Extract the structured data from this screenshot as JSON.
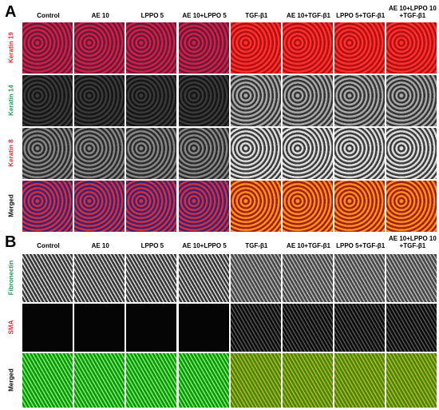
{
  "panel_a": {
    "label": "A",
    "columns": [
      [
        "Control"
      ],
      [
        "AE 10"
      ],
      [
        "LPPO 5"
      ],
      [
        "AE 10+LPPO 5"
      ],
      [
        "TGF-β1"
      ],
      [
        "AE 10+TGF-β1"
      ],
      [
        "LPPO 5+TGF-β1"
      ],
      [
        "AE 10+LPPO 10",
        "+TGF-β1"
      ]
    ],
    "rows": [
      {
        "label": "Keratin 19",
        "color": "#e0303a"
      },
      {
        "label": "Keratin 14",
        "color": "#2a9a5a"
      },
      {
        "label": "Keratin 8",
        "color": "#e0303a"
      },
      {
        "label": "Merged",
        "color": "#111111"
      }
    ]
  },
  "panel_b": {
    "label": "B",
    "columns": [
      [
        "Control"
      ],
      [
        "AE 10"
      ],
      [
        "LPPO 5"
      ],
      [
        "AE 10+LPPO 5"
      ],
      [
        "TGF-β1"
      ],
      [
        "AE 10+TGF-β1"
      ],
      [
        "LPPO 5+TGF-β1"
      ],
      [
        "AE 10+LPPO 10",
        "+TGF-β1"
      ]
    ],
    "rows": [
      {
        "label": "Fibronectin",
        "color": "#2a9a5a"
      },
      {
        "label": "SMA",
        "color": "#e0303a"
      },
      {
        "label": "Merged",
        "color": "#111111"
      }
    ]
  }
}
